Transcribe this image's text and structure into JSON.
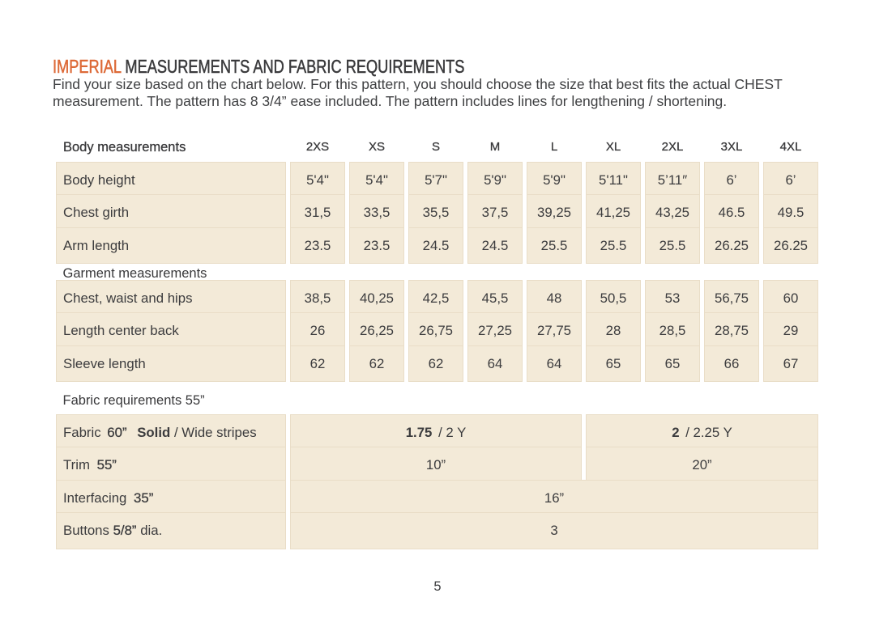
{
  "colors": {
    "accent_orange": "#dd6a38",
    "cell_background": "#f3ead8",
    "text_dark": "#3c3c3e",
    "page_background": "#ffffff"
  },
  "title": {
    "highlight": "IMPERIAL",
    "rest": " MEASUREMENTS AND FABRIC REQUIREMENTS"
  },
  "intro": {
    "lines": [
      "Find your size based on the chart below. For this pattern, you should choose the size that best fits the actual CHEST",
      "measurement. The pattern has 8 3/4” ease included. The pattern includes lines for lengthening / shortening."
    ]
  },
  "size_table": {
    "sizes": [
      "2XS",
      "XS",
      "S",
      "M",
      "L",
      "XL",
      "2XL",
      "3XL",
      "4XL"
    ],
    "body_section_label": "Body measurements",
    "body_rows": [
      {
        "label": "Body height",
        "values": [
          "5'4\"",
          "5'4\"",
          "5'7\"",
          "5'9\"",
          "5'9\"",
          "5'11\"",
          "5’11″",
          "6’",
          "6’"
        ]
      },
      {
        "label": "Chest girth",
        "values": [
          "31,5",
          "33,5",
          "35,5",
          "37,5",
          "39,25",
          "41,25",
          "43,25",
          "46.5",
          "49.5"
        ]
      },
      {
        "label": "Arm length",
        "values": [
          "23.5",
          "23.5",
          "24.5",
          "24.5",
          "25.5",
          "25.5",
          "25.5",
          "26.25",
          "26.25"
        ]
      }
    ],
    "garment_section_label": "Garment measurements",
    "garment_rows": [
      {
        "label": "Chest, waist and hips",
        "values": [
          "38,5",
          "40,25",
          "42,5",
          "45,5",
          "48",
          "50,5",
          "53",
          "56,75",
          "60"
        ]
      },
      {
        "label": "Length center back",
        "values": [
          "26",
          "26,25",
          "26,75",
          "27,25",
          "27,75",
          "28",
          "28,5",
          "28,75",
          "29"
        ]
      },
      {
        "label": "Sleeve length",
        "values": [
          "62",
          "62",
          "62",
          "64",
          "64",
          "65",
          "65",
          "66",
          "67"
        ]
      }
    ],
    "fabric_section_label": "Fabric requirements 55”",
    "fabric_rows": [
      {
        "label_parts": [
          {
            "text": "Fabric",
            "weight": "regular"
          },
          {
            "text": "60”",
            "weight": "semibold",
            "gap": 3
          },
          {
            "text": "Solid",
            "weight": "bold",
            "gap": 8
          },
          {
            "text": "/ Wide stripes",
            "weight": "regular"
          }
        ],
        "spans": [
          {
            "cols": 5,
            "parts": [
              {
                "text": "1.75",
                "weight": "bold"
              },
              {
                "text": "/ 2 Y",
                "weight": "regular",
                "gap": 3
              }
            ]
          },
          {
            "cols": 4,
            "parts": [
              {
                "text": "2",
                "weight": "bold"
              },
              {
                "text": "/ 2.25 Y",
                "weight": "regular",
                "gap": 3
              }
            ]
          }
        ]
      },
      {
        "label_parts": [
          {
            "text": "Trim",
            "weight": "regular"
          },
          {
            "text": "55”",
            "weight": "semibold",
            "gap": 4
          }
        ],
        "spans": [
          {
            "cols": 5,
            "parts": [
              {
                "text": "10”",
                "weight": "regular"
              }
            ]
          },
          {
            "cols": 4,
            "parts": [
              {
                "text": "20”",
                "weight": "regular"
              }
            ]
          }
        ]
      },
      {
        "label_parts": [
          {
            "text": "Interfacing",
            "weight": "regular"
          },
          {
            "text": "35”",
            "weight": "semibold",
            "gap": 4
          }
        ],
        "spans": [
          {
            "cols": 9,
            "parts": [
              {
                "text": "16”",
                "weight": "regular"
              }
            ]
          }
        ]
      },
      {
        "label_parts": [
          {
            "text": "Buttons",
            "weight": "regular"
          },
          {
            "text": "5/8”",
            "weight": "semibold"
          },
          {
            "text": "dia.",
            "weight": "regular"
          }
        ],
        "spans": [
          {
            "cols": 9,
            "parts": [
              {
                "text": "3",
                "weight": "regular"
              }
            ]
          }
        ]
      }
    ]
  },
  "page": {
    "number": "5"
  }
}
